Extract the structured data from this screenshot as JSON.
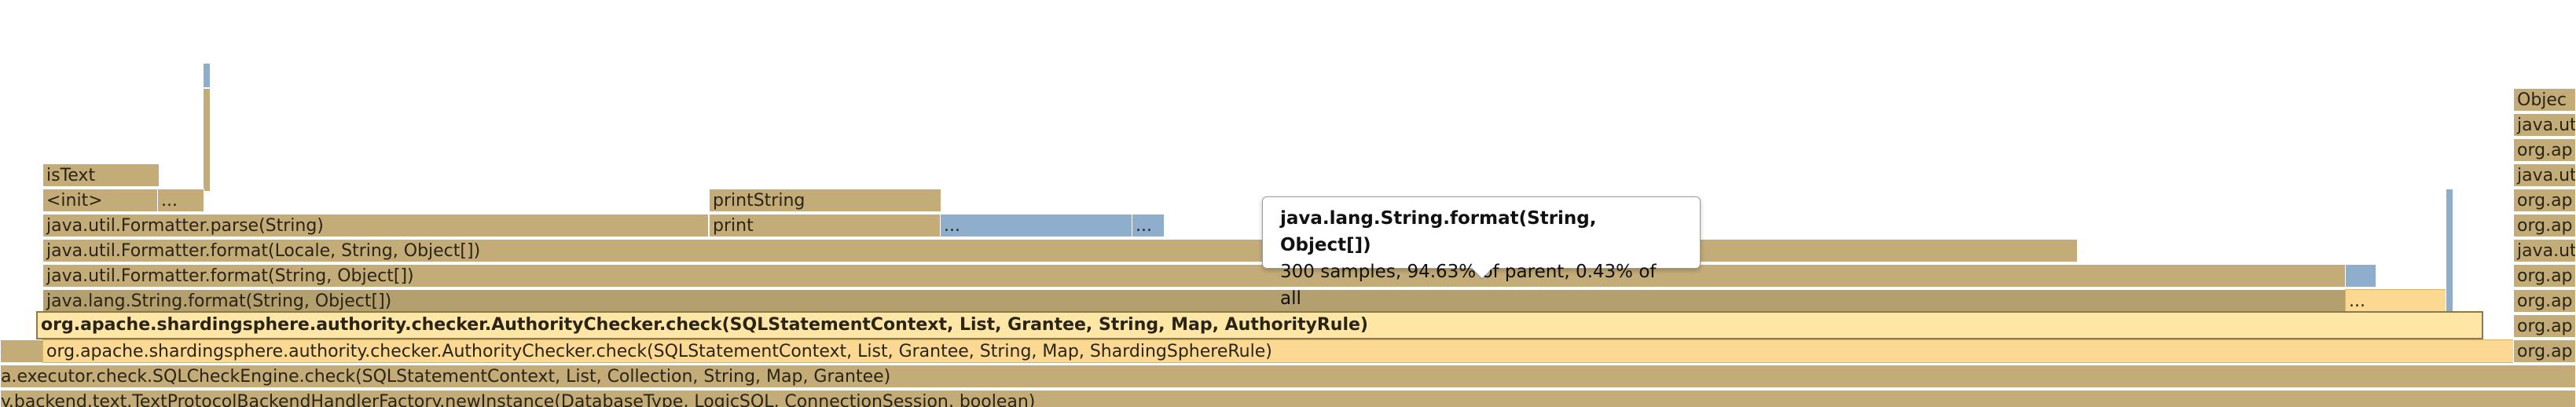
{
  "tooltip": {
    "title": "java.lang.String.format(String, Object[])",
    "detail": "300 samples, 94.63% of parent, 0.43% of all"
  },
  "frames": {
    "is_text": "isText",
    "init": "<init>",
    "ellipsis": "...",
    "formatter_parse": "java.util.Formatter.parse(String)",
    "print_string": "printString",
    "print": "print",
    "formatter_format_locale": "java.util.Formatter.format(Locale, String, Object[])",
    "formatter_format": "java.util.Formatter.format(String, Object[])",
    "string_format": "java.lang.String.format(String, Object[])",
    "checker_authority_rule": "org.apache.shardingsphere.authority.checker.AuthorityChecker.check(SQLStatementContext, List, Grantee, String, Map, AuthorityRule)",
    "checker_sharding_rule": "org.apache.shardingsphere.authority.checker.AuthorityChecker.check(SQLStatementContext, List, Grantee, String, Map, ShardingSphereRule)",
    "sql_check_engine": "a.executor.check.SQLCheckEngine.check(SQLStatementContext, List, Collection, String, Map, Grantee)",
    "handler_factory": "y.backend.text.TextProtocolBackendHandlerFactory.newInstance(DatabaseType, LogicSQL, ConnectionSession, boolean)",
    "right_1": "Objec",
    "right_2": "java.uti",
    "right_3": "org.ap",
    "right_4": "java.uti",
    "right_5": "org.ap",
    "right_6": "org.ap",
    "right_7": "java.uti",
    "right_8": "org.ap",
    "right_9": "org.ap",
    "right_10": "org.ap",
    "right_11": "org.ap",
    "right_12": "org.ap"
  },
  "colors": {
    "frame": "#c4ac78",
    "highlight": "#fde6a6",
    "selected": "#fcd993",
    "other": "#8faecb"
  }
}
